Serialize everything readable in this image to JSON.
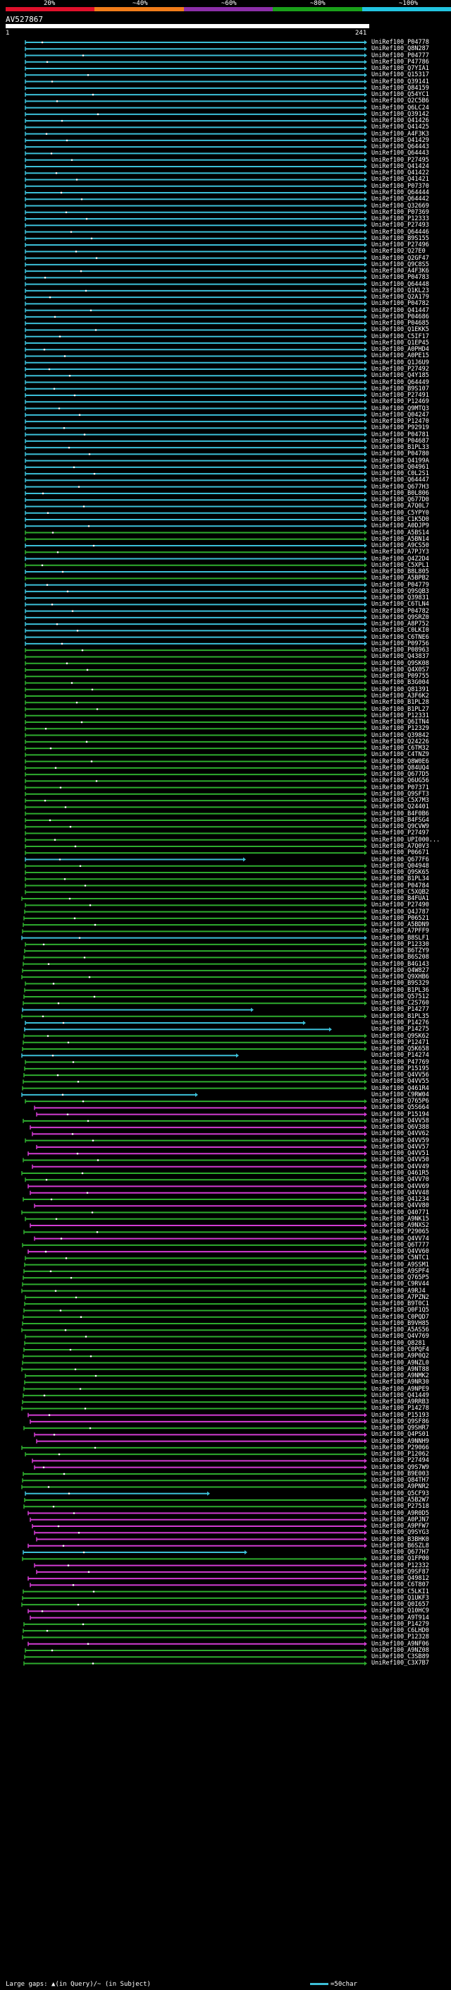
{
  "scale": {
    "ticks": [
      "20%",
      "~40%",
      "~60%",
      "~80%",
      "~100%"
    ],
    "colors": [
      "#e0102b",
      "#f07c1a",
      "#8c2fa8",
      "#1aa01a",
      "#22c4e0"
    ]
  },
  "query": {
    "name": "AV527867",
    "start": "1",
    "end": "241"
  },
  "legend": {
    "gaps": "Large gaps: ▲(in Query)/~ (in Subject)",
    "line": "=50char"
  },
  "hit_colors": {
    "c": "#3cbfd8",
    "g": "#2eac2e",
    "m": "#d23cd2"
  },
  "hits": [
    [
      "UniRef100_P04778",
      "c",
      0
    ],
    [
      "UniRef100_Q8N287",
      "c",
      0
    ],
    [
      "UniRef100_P04777",
      "c",
      0
    ],
    [
      "UniRef100_P47786",
      "c",
      0
    ],
    [
      "UniRef100_Q7YIA1",
      "c",
      0
    ],
    [
      "UniRef100_Q15317",
      "c",
      0
    ],
    [
      "UniRef100_Q39141",
      "c",
      0
    ],
    [
      "UniRef100_Q84159",
      "c",
      0
    ],
    [
      "UniRef100_Q54YC1",
      "c",
      0
    ],
    [
      "UniRef100_Q2C5B6",
      "c",
      0
    ],
    [
      "UniRef100_Q6LC24",
      "c",
      0
    ],
    [
      "UniRef100_Q39142",
      "c",
      0
    ],
    [
      "UniRef100_Q41426",
      "c",
      0
    ],
    [
      "UniRef100_Q41425",
      "c",
      0
    ],
    [
      "UniRef100_A4F3K3",
      "c",
      0
    ],
    [
      "UniRef100_Q41429",
      "c",
      0
    ],
    [
      "UniRef100_Q64443",
      "c",
      0
    ],
    [
      "UniRef100_Q64443",
      "c",
      0
    ],
    [
      "UniRef100_P27495",
      "c",
      0
    ],
    [
      "UniRef100_Q41424",
      "c",
      0
    ],
    [
      "UniRef100_Q41422",
      "c",
      0
    ],
    [
      "UniRef100_Q41421",
      "c",
      0
    ],
    [
      "UniRef100_P07370",
      "c",
      0
    ],
    [
      "UniRef100_Q64444",
      "c",
      0
    ],
    [
      "UniRef100_Q64442",
      "c",
      0
    ],
    [
      "UniRef100_Q32669",
      "c",
      0
    ],
    [
      "UniRef100_P07369",
      "c",
      0
    ],
    [
      "UniRef100_P12333",
      "c",
      0
    ],
    [
      "UniRef100_P27493",
      "c",
      0
    ],
    [
      "UniRef100_Q64446",
      "c",
      0
    ],
    [
      "UniRef100_B9S155",
      "c",
      0
    ],
    [
      "UniRef100_P27496",
      "c",
      0
    ],
    [
      "UniRef100_Q27E0",
      "c",
      0
    ],
    [
      "UniRef100_Q2GF47",
      "c",
      0
    ],
    [
      "UniRef100_Q9C8S5",
      "c",
      0
    ],
    [
      "UniRef100_A4F3K6",
      "c",
      0
    ],
    [
      "UniRef100_P04783",
      "c",
      0
    ],
    [
      "UniRef100_Q64448",
      "c",
      0
    ],
    [
      "UniRef100_Q1KL23",
      "c",
      0
    ],
    [
      "UniRef100_Q2A179",
      "c",
      0
    ],
    [
      "UniRef100_P04782",
      "c",
      0
    ],
    [
      "UniRef100_Q41447",
      "c",
      0
    ],
    [
      "UniRef100_P04686",
      "c",
      0
    ],
    [
      "UniRef100_P04685",
      "c",
      0
    ],
    [
      "UniRef100_Q1EKK5",
      "c",
      0
    ],
    [
      "UniRef100_C5IF17",
      "c",
      0
    ],
    [
      "UniRef100_Q1EP45",
      "c",
      0
    ],
    [
      "UniRef100_A0PHD4",
      "c",
      0
    ],
    [
      "UniRef100_A0PE15",
      "c",
      0
    ],
    [
      "UniRef100_Q1J6U9",
      "c",
      0
    ],
    [
      "UniRef100_P27492",
      "c",
      0
    ],
    [
      "UniRef100_Q4Y185",
      "c",
      0
    ],
    [
      "UniRef100_Q64449",
      "c",
      0
    ],
    [
      "UniRef100_B9S107",
      "c",
      0
    ],
    [
      "UniRef100_P27491",
      "c",
      0
    ],
    [
      "UniRef100_P12469",
      "c",
      0
    ],
    [
      "UniRef100_Q9MTQ3",
      "c",
      0
    ],
    [
      "UniRef100_Q04247",
      "c",
      0
    ],
    [
      "UniRef100_P12470",
      "c",
      0
    ],
    [
      "UniRef100_P92919",
      "c",
      0
    ],
    [
      "UniRef100_P04781",
      "c",
      0
    ],
    [
      "UniRef100_P04687",
      "c",
      0
    ],
    [
      "UniRef100_B1PL33",
      "c",
      0
    ],
    [
      "UniRef100_P04780",
      "c",
      0
    ],
    [
      "UniRef100_Q4199A",
      "c",
      0
    ],
    [
      "UniRef100_Q04961",
      "c",
      0
    ],
    [
      "UniRef100_C0L2S1",
      "c",
      0
    ],
    [
      "UniRef100_Q64447",
      "c",
      0
    ],
    [
      "UniRef100_Q677H3",
      "c",
      0
    ],
    [
      "UniRef100_B0L806",
      "c",
      0
    ],
    [
      "UniRef100_Q677D0",
      "c",
      0
    ],
    [
      "UniRef100_A7Q0L7",
      "c",
      0
    ],
    [
      "UniRef100_C5YPY0",
      "c",
      0
    ],
    [
      "UniRef100_C1K5D0",
      "c",
      0
    ],
    [
      "UniRef100_A0DJP9",
      "c",
      0
    ],
    [
      "UniRef100_A5BS14",
      "g",
      0
    ],
    [
      "UniRef100_A5BN14",
      "g",
      0
    ],
    [
      "UniRef100_A9CS50",
      "c",
      0
    ],
    [
      "UniRef100_A7PJY3",
      "g",
      0
    ],
    [
      "UniRef100_Q4Z2D4",
      "c",
      0
    ],
    [
      "UniRef100_C5XPL1",
      "g",
      0
    ],
    [
      "UniRef100_B8L805",
      "c",
      0
    ],
    [
      "UniRef100_A5BPB2",
      "g",
      0
    ],
    [
      "UniRef100_P04779",
      "c",
      0
    ],
    [
      "UniRef100_Q9SQB3",
      "c",
      0
    ],
    [
      "UniRef100_Q39831",
      "c",
      0
    ],
    [
      "UniRef100_C6TLN4",
      "c",
      0
    ],
    [
      "UniRef100_P04782",
      "c",
      0
    ],
    [
      "UniRef100_Q9SRZ0",
      "c",
      0
    ],
    [
      "UniRef100_A8P752",
      "c",
      0
    ],
    [
      "UniRef100_C0LKI0",
      "c",
      0
    ],
    [
      "UniRef100_C6TNE6",
      "c",
      0
    ],
    [
      "UniRef100_P09756",
      "c",
      0
    ],
    [
      "UniRef100_P08963",
      "g",
      0
    ],
    [
      "UniRef100_Q43837",
      "g",
      0
    ],
    [
      "UniRef100_Q9SK08",
      "g",
      0
    ],
    [
      "UniRef100_Q4X0S7",
      "g",
      0
    ],
    [
      "UniRef100_P09755",
      "g",
      0
    ],
    [
      "UniRef100_B3G004",
      "g",
      0
    ],
    [
      "UniRef100_Q81391",
      "g",
      0
    ],
    [
      "UniRef100_A3F6K2",
      "g",
      0
    ],
    [
      "UniRef100_B1PL28",
      "g",
      0
    ],
    [
      "UniRef100_B1PL27",
      "g",
      0
    ],
    [
      "UniRef100_P12331",
      "g",
      0
    ],
    [
      "UniRef100_Q6ITN4",
      "g",
      0
    ],
    [
      "UniRef100_P12329",
      "g",
      0
    ],
    [
      "UniRef100_Q39842",
      "g",
      0
    ],
    [
      "UniRef100_Q24226",
      "g",
      0
    ],
    [
      "UniRef100_C6TM32",
      "g",
      0
    ],
    [
      "UniRef100_C4TNZ9",
      "g",
      0
    ],
    [
      "UniRef100_Q8W0E6",
      "g",
      0
    ],
    [
      "UniRef100_Q84UQ4",
      "g",
      0
    ],
    [
      "UniRef100_Q677D5",
      "g",
      0
    ],
    [
      "UniRef100_Q6UG56",
      "g",
      0
    ],
    [
      "UniRef100_P07371",
      "g",
      0
    ],
    [
      "UniRef100_Q9SFT3",
      "g",
      0
    ],
    [
      "UniRef100_C5X7M3",
      "g",
      0
    ],
    [
      "UniRef100_Q24401",
      "g",
      0
    ],
    [
      "UniRef100_B4F0B6",
      "g",
      0
    ],
    [
      "UniRef100_B4FSG4",
      "g",
      0
    ],
    [
      "UniRef100_Q9CVW9",
      "g",
      0
    ],
    [
      "UniRef100_P27497",
      "g",
      0
    ],
    [
      "UniRef100_UPI000...",
      "g",
      0
    ],
    [
      "UniRef100_A7Q0V3",
      "g",
      0
    ],
    [
      "UniRef100_P06671",
      "g",
      0
    ],
    [
      "UniRef100_Q677F6",
      "c",
      1
    ],
    [
      "UniRef100_Q04948",
      "g",
      0
    ],
    [
      "UniRef100_Q9SK65",
      "g",
      0
    ],
    [
      "UniRef100_B1PL34",
      "g",
      0
    ],
    [
      "UniRef100_P04784",
      "g",
      0
    ],
    [
      "UniRef100_C5XQB2",
      "g",
      0
    ],
    [
      "UniRef100_B4FUA1",
      "g",
      0
    ],
    [
      "UniRef100_P27490",
      "g",
      0
    ],
    [
      "UniRef100_Q4J787",
      "g",
      0
    ],
    [
      "UniRef100_P06521",
      "g",
      0
    ],
    [
      "UniRef100_A5BDN9",
      "g",
      0
    ],
    [
      "UniRef100_A7PFF9",
      "g",
      0
    ],
    [
      "UniRef100_B8SLF1",
      "c",
      0
    ],
    [
      "UniRef100_P12330",
      "g",
      0
    ],
    [
      "UniRef100_B6TZY9",
      "g",
      0
    ],
    [
      "UniRef100_B6S208",
      "g",
      0
    ],
    [
      "UniRef100_B4G143",
      "g",
      0
    ],
    [
      "UniRef100_Q4W827",
      "g",
      0
    ],
    [
      "UniRef100_Q9XHB6",
      "g",
      0
    ],
    [
      "UniRef100_B9S329",
      "g",
      0
    ],
    [
      "UniRef100_B1PL36",
      "g",
      0
    ],
    [
      "UniRef100_Q57512",
      "g",
      0
    ],
    [
      "UniRef100_C2S760",
      "g",
      0
    ],
    [
      "UniRef100_P14277",
      "c",
      1
    ],
    [
      "UniRef100_B1PL35",
      "g",
      0
    ],
    [
      "UniRef100_P14276",
      "c",
      1
    ],
    [
      "UniRef100_P14275",
      "c",
      1
    ],
    [
      "UniRef100_Q9SK62",
      "g",
      0
    ],
    [
      "UniRef100_P12471",
      "g",
      0
    ],
    [
      "UniRef100_Q5K658",
      "g",
      0
    ],
    [
      "UniRef100_P14274",
      "c",
      1
    ],
    [
      "UniRef100_P47769",
      "g",
      0
    ],
    [
      "UniRef100_P15195",
      "g",
      0
    ],
    [
      "UniRef100_Q4VV56",
      "g",
      0
    ],
    [
      "UniRef100_Q4VV55",
      "g",
      0
    ],
    [
      "UniRef100_Q461R4",
      "g",
      0
    ],
    [
      "UniRef100_C9RW04",
      "c",
      1
    ],
    [
      "UniRef100_Q765P6",
      "g",
      0
    ],
    [
      "UniRef100_Q5S664",
      "m",
      0
    ],
    [
      "UniRef100_P15194",
      "m",
      0
    ],
    [
      "UniRef100_Q4VV58",
      "g",
      0
    ],
    [
      "UniRef100_Q6V388",
      "m",
      0
    ],
    [
      "UniRef100_Q4VV62",
      "m",
      0
    ],
    [
      "UniRef100_Q4VV59",
      "g",
      0
    ],
    [
      "UniRef100_Q4VV57",
      "m",
      0
    ],
    [
      "UniRef100_Q4VV51",
      "m",
      0
    ],
    [
      "UniRef100_Q4VV50",
      "g",
      0
    ],
    [
      "UniRef100_Q4VV49",
      "m",
      0
    ],
    [
      "UniRef100_Q461R5",
      "g",
      0
    ],
    [
      "UniRef100_Q4VV70",
      "g",
      0
    ],
    [
      "UniRef100_Q4VV69",
      "m",
      0
    ],
    [
      "UniRef100_Q4VV48",
      "m",
      0
    ],
    [
      "UniRef100_Q41234",
      "g",
      0
    ],
    [
      "UniRef100_Q4VV80",
      "m",
      0
    ],
    [
      "UniRef100_Q40771",
      "g",
      0
    ],
    [
      "UniRef100_A9NK15",
      "g",
      0
    ],
    [
      "UniRef100_A9NXS2",
      "m",
      0
    ],
    [
      "UniRef100_P29065",
      "g",
      0
    ],
    [
      "UniRef100_Q4VV74",
      "m",
      0
    ],
    [
      "UniRef100_Q6T777",
      "g",
      0
    ],
    [
      "UniRef100_Q4VV60",
      "m",
      0
    ],
    [
      "UniRef100_C5NTC1",
      "g",
      0
    ],
    [
      "UniRef100_A9SSM1",
      "g",
      0
    ],
    [
      "UniRef100_A9SPF4",
      "g",
      0
    ],
    [
      "UniRef100_Q765P5",
      "g",
      0
    ],
    [
      "UniRef100_C9RV44",
      "g",
      0
    ],
    [
      "UniRef100_A9RJ4",
      "g",
      0
    ],
    [
      "UniRef100_A7PZN2",
      "g",
      0
    ],
    [
      "UniRef100_B9T0C1",
      "g",
      0
    ],
    [
      "UniRef100_Q0F1Q5",
      "g",
      0
    ],
    [
      "UniRef100_C0PQD7",
      "g",
      0
    ],
    [
      "UniRef100_B9VH85",
      "g",
      0
    ],
    [
      "UniRef100_A5AS56",
      "g",
      0
    ],
    [
      "UniRef100_Q4V769",
      "g",
      0
    ],
    [
      "UniRef100_Q8281",
      "g",
      0
    ],
    [
      "UniRef100_C0PQF4",
      "g",
      0
    ],
    [
      "UniRef100_A9P0Q2",
      "g",
      0
    ],
    [
      "UniRef100_A9NZL0",
      "g",
      0
    ],
    [
      "UniRef100_A9NT88",
      "g",
      0
    ],
    [
      "UniRef100_A9NMK2",
      "g",
      0
    ],
    [
      "UniRef100_A9NR30",
      "g",
      0
    ],
    [
      "UniRef100_A9NPE9",
      "g",
      0
    ],
    [
      "UniRef100_Q41449",
      "g",
      0
    ],
    [
      "UniRef100_A9RRB3",
      "g",
      0
    ],
    [
      "UniRef100_P14278",
      "g",
      0
    ],
    [
      "UniRef100_P15193",
      "m",
      0
    ],
    [
      "UniRef100_Q9SF86",
      "m",
      0
    ],
    [
      "UniRef100_Q9SHR7",
      "g",
      0
    ],
    [
      "UniRef100_Q4PS01",
      "m",
      0
    ],
    [
      "UniRef100_A9NNH9",
      "m",
      0
    ],
    [
      "UniRef100_P29066",
      "g",
      0
    ],
    [
      "UniRef100_P12062",
      "g",
      0
    ],
    [
      "UniRef100_P27494",
      "m",
      0
    ],
    [
      "UniRef100_Q9S7W9",
      "m",
      0
    ],
    [
      "UniRef100_B9E003",
      "g",
      0
    ],
    [
      "UniRef100_Q84TH7",
      "g",
      0
    ],
    [
      "UniRef100_A9PNR2",
      "g",
      0
    ],
    [
      "UniRef100_Q5CF93",
      "c",
      1
    ],
    [
      "UniRef100_A5B2W7",
      "g",
      0
    ],
    [
      "UniRef100_P27518",
      "g",
      0
    ],
    [
      "UniRef100_A9R0D5",
      "m",
      0
    ],
    [
      "UniRef100_A0PJN7",
      "m",
      0
    ],
    [
      "UniRef100_A9PFW7",
      "m",
      0
    ],
    [
      "UniRef100_Q9SYG3",
      "m",
      0
    ],
    [
      "UniRef100_B3BHK0",
      "m",
      0
    ],
    [
      "UniRef100_B6SZL8",
      "m",
      0
    ],
    [
      "UniRef100_Q677H7",
      "c",
      1
    ],
    [
      "UniRef100_Q1FP00",
      "g",
      0
    ],
    [
      "UniRef100_P12332",
      "m",
      0
    ],
    [
      "UniRef100_Q9SF87",
      "m",
      0
    ],
    [
      "UniRef100_Q49812",
      "m",
      0
    ],
    [
      "UniRef100_C6T807",
      "m",
      0
    ],
    [
      "UniRef100_C5LKI1",
      "g",
      0
    ],
    [
      "UniRef100_Q1UKF3",
      "g",
      0
    ],
    [
      "UniRef100_Q0I657",
      "g",
      0
    ],
    [
      "UniRef100_Q10HC9",
      "m",
      0
    ],
    [
      "UniRef100_A9T914",
      "m",
      0
    ],
    [
      "UniRef100_P14279",
      "g",
      0
    ],
    [
      "UniRef100_C6LHD0",
      "g",
      0
    ],
    [
      "UniRef100_P12328",
      "g",
      0
    ],
    [
      "UniRef100_A9NF06",
      "m",
      0
    ],
    [
      "UniRef100_A9NZ08",
      "g",
      0
    ],
    [
      "UniRef100_C3SB89",
      "g",
      0
    ],
    [
      "UniRef100_C3X7B7",
      "g",
      0
    ]
  ]
}
